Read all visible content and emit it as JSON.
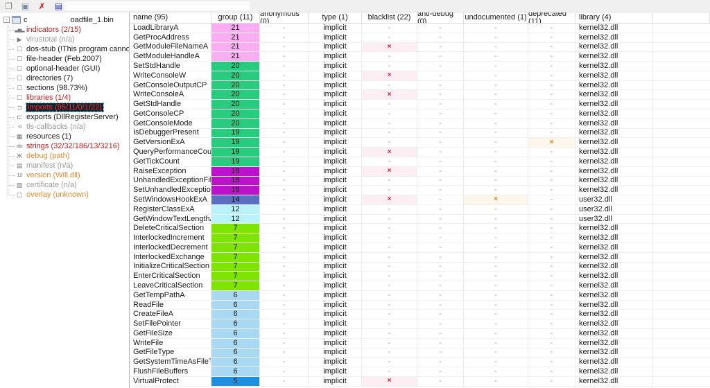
{
  "toolbar": {
    "icons": [
      {
        "name": "open-file-icon",
        "glyph": "❒"
      },
      {
        "name": "save-icon",
        "glyph": "▣"
      },
      {
        "name": "close-file-icon",
        "glyph": "✗"
      },
      {
        "name": "xml-report-icon",
        "glyph": "▤"
      },
      {
        "name": "help-icon",
        "glyph": "?"
      }
    ]
  },
  "sidebar": {
    "root": {
      "prefix": "c",
      "suffix": "oadfile_1.bin",
      "expander": "-"
    },
    "items": [
      {
        "label": "indicators (2/15)",
        "color": "c-red",
        "icon": "indicators-icon",
        "glyph": "▃▅▂",
        "mini": true,
        "selected": false
      },
      {
        "label": "virustotal (n/a)",
        "color": "c-gray",
        "icon": "virustotal-icon",
        "glyph": "▶",
        "mini": false,
        "selected": false
      },
      {
        "label": "dos-stub (!This program cannot be ru",
        "color": "c-black",
        "icon": "checkbox-icon",
        "glyph": "☐",
        "mini": false,
        "selected": false
      },
      {
        "label": "file-header (Feb.2007)",
        "color": "c-black",
        "icon": "checkbox-icon",
        "glyph": "☐",
        "mini": false,
        "selected": false
      },
      {
        "label": "optional-header (GUI)",
        "color": "c-black",
        "icon": "checkbox-icon",
        "glyph": "☐",
        "mini": false,
        "selected": false
      },
      {
        "label": "directories (7)",
        "color": "c-black",
        "icon": "checkbox-icon",
        "glyph": "☐",
        "mini": false,
        "selected": false
      },
      {
        "label": "sections (98.73%)",
        "color": "c-black",
        "icon": "checkbox-icon",
        "glyph": "☐",
        "mini": false,
        "selected": false
      },
      {
        "label": "libraries (1/4)",
        "color": "c-red",
        "icon": "checkbox-icon",
        "glyph": "☐",
        "mini": false,
        "selected": false
      },
      {
        "label": "imports (95/11/0/1/22)",
        "color": "c-red",
        "icon": "imports-icon",
        "glyph": "⊐",
        "mini": false,
        "selected": true
      },
      {
        "label": "exports (DllRegisterServer)",
        "color": "c-black",
        "icon": "exports-icon",
        "glyph": "⊏",
        "mini": false,
        "selected": false
      },
      {
        "label": "tls-callbacks (n/a)",
        "color": "c-gray",
        "icon": "tls-callbacks-icon",
        "glyph": "-o",
        "mini": true,
        "selected": false
      },
      {
        "label": "resources (1)",
        "color": "c-black",
        "icon": "resources-icon",
        "glyph": "▦",
        "mini": false,
        "selected": false
      },
      {
        "label": "strings (32/32/186/13/3216)",
        "color": "c-red",
        "icon": "strings-icon",
        "glyph": "abc",
        "mini": true,
        "selected": false
      },
      {
        "label": "debug (path)",
        "color": "c-orange",
        "icon": "debug-icon",
        "glyph": "Ж",
        "mini": false,
        "selected": false
      },
      {
        "label": "manifest (n/a)",
        "color": "c-gray",
        "icon": "manifest-icon",
        "glyph": "▤",
        "mini": false,
        "selected": false
      },
      {
        "label": "version (Will.dll)",
        "color": "c-orange",
        "icon": "version-icon",
        "glyph": "1.0",
        "mini": true,
        "selected": false
      },
      {
        "label": "certificate (n/a)",
        "color": "c-gray",
        "icon": "certificate-icon",
        "glyph": "▧",
        "mini": false,
        "selected": false
      },
      {
        "label": "overlay (unknown)",
        "color": "c-orange",
        "icon": "overlay-icon",
        "glyph": "▢",
        "mini": false,
        "selected": false
      }
    ]
  },
  "table": {
    "columns": [
      {
        "label": "name (95)",
        "align": "left"
      },
      {
        "label": "group (11)",
        "align": "center"
      },
      {
        "label": "anonymous (0)",
        "align": "center"
      },
      {
        "label": "type (1)",
        "align": "center"
      },
      {
        "label": "blacklist (22)",
        "align": "center"
      },
      {
        "label": "anti-debug (0)",
        "align": "center"
      },
      {
        "label": "undocumented (1)",
        "align": "center"
      },
      {
        "label": "deprecated (11)",
        "align": "center"
      },
      {
        "label": "library (4)",
        "align": "left"
      },
      {
        "label": "",
        "align": "center"
      }
    ],
    "group_colors": {
      "21": "#f9aef2",
      "20": "#29cc7e",
      "19": "#29cc7e",
      "18": "#bc12cc",
      "14": "#5a6ec4",
      "12": "#baf3fc",
      "7": "#7de500",
      "6": "#a9d9f2",
      "5": "#1e8ede"
    },
    "rows": [
      {
        "name": "LoadLibraryA",
        "group": "21",
        "anonymous": "-",
        "type": "implicit",
        "blacklist": "-",
        "anti_debug": "-",
        "undocumented": "-",
        "deprecated": "-",
        "library": "kernel32.dll"
      },
      {
        "name": "GetProcAddress",
        "group": "21",
        "anonymous": "-",
        "type": "implicit",
        "blacklist": "-",
        "anti_debug": "-",
        "undocumented": "-",
        "deprecated": "-",
        "library": "kernel32.dll"
      },
      {
        "name": "GetModuleFileNameA",
        "group": "21",
        "anonymous": "-",
        "type": "implicit",
        "blacklist": "x",
        "anti_debug": "-",
        "undocumented": "-",
        "deprecated": "-",
        "library": "kernel32.dll"
      },
      {
        "name": "GetModuleHandleA",
        "group": "21",
        "anonymous": "-",
        "type": "implicit",
        "blacklist": "-",
        "anti_debug": "-",
        "undocumented": "-",
        "deprecated": "-",
        "library": "kernel32.dll"
      },
      {
        "name": "SetStdHandle",
        "group": "20",
        "anonymous": "-",
        "type": "implicit",
        "blacklist": "-",
        "anti_debug": "-",
        "undocumented": "-",
        "deprecated": "-",
        "library": "kernel32.dll"
      },
      {
        "name": "WriteConsoleW",
        "group": "20",
        "anonymous": "-",
        "type": "implicit",
        "blacklist": "x",
        "anti_debug": "-",
        "undocumented": "-",
        "deprecated": "-",
        "library": "kernel32.dll"
      },
      {
        "name": "GetConsoleOutputCP",
        "group": "20",
        "anonymous": "-",
        "type": "implicit",
        "blacklist": "-",
        "anti_debug": "-",
        "undocumented": "-",
        "deprecated": "-",
        "library": "kernel32.dll"
      },
      {
        "name": "WriteConsoleA",
        "group": "20",
        "anonymous": "-",
        "type": "implicit",
        "blacklist": "x",
        "anti_debug": "-",
        "undocumented": "-",
        "deprecated": "-",
        "library": "kernel32.dll"
      },
      {
        "name": "GetStdHandle",
        "group": "20",
        "anonymous": "-",
        "type": "implicit",
        "blacklist": "-",
        "anti_debug": "-",
        "undocumented": "-",
        "deprecated": "-",
        "library": "kernel32.dll"
      },
      {
        "name": "GetConsoleCP",
        "group": "20",
        "anonymous": "-",
        "type": "implicit",
        "blacklist": "-",
        "anti_debug": "-",
        "undocumented": "-",
        "deprecated": "-",
        "library": "kernel32.dll"
      },
      {
        "name": "GetConsoleMode",
        "group": "20",
        "anonymous": "-",
        "type": "implicit",
        "blacklist": "-",
        "anti_debug": "-",
        "undocumented": "-",
        "deprecated": "-",
        "library": "kernel32.dll"
      },
      {
        "name": "IsDebuggerPresent",
        "group": "19",
        "anonymous": "-",
        "type": "implicit",
        "blacklist": "-",
        "anti_debug": "-",
        "undocumented": "-",
        "deprecated": "-",
        "library": "kernel32.dll"
      },
      {
        "name": "GetVersionExA",
        "group": "19",
        "anonymous": "-",
        "type": "implicit",
        "blacklist": "-",
        "anti_debug": "-",
        "undocumented": "-",
        "deprecated": "x",
        "library": "kernel32.dll"
      },
      {
        "name": "QueryPerformanceCounter",
        "group": "19",
        "anonymous": "-",
        "type": "implicit",
        "blacklist": "x",
        "anti_debug": "-",
        "undocumented": "-",
        "deprecated": "-",
        "library": "kernel32.dll"
      },
      {
        "name": "GetTickCount",
        "group": "19",
        "anonymous": "-",
        "type": "implicit",
        "blacklist": "-",
        "anti_debug": "-",
        "undocumented": "-",
        "deprecated": "-",
        "library": "kernel32.dll"
      },
      {
        "name": "RaiseException",
        "group": "18",
        "anonymous": "-",
        "type": "implicit",
        "blacklist": "x",
        "anti_debug": "-",
        "undocumented": "-",
        "deprecated": "-",
        "library": "kernel32.dll"
      },
      {
        "name": "UnhandledExceptionFilter",
        "group": "18",
        "anonymous": "-",
        "type": "implicit",
        "blacklist": "-",
        "anti_debug": "-",
        "undocumented": "-",
        "deprecated": "-",
        "library": "kernel32.dll"
      },
      {
        "name": "SetUnhandledExceptionFilter",
        "group": "18",
        "anonymous": "-",
        "type": "implicit",
        "blacklist": "-",
        "anti_debug": "-",
        "undocumented": "-",
        "deprecated": "-",
        "library": "kernel32.dll"
      },
      {
        "name": "SetWindowsHookExA",
        "group": "14",
        "anonymous": "-",
        "type": "implicit",
        "blacklist": "x",
        "anti_debug": "-",
        "undocumented": "x",
        "deprecated": "-",
        "library": "user32.dll"
      },
      {
        "name": "RegisterClassExA",
        "group": "12",
        "anonymous": "-",
        "type": "implicit",
        "blacklist": "-",
        "anti_debug": "-",
        "undocumented": "-",
        "deprecated": "-",
        "library": "user32.dll"
      },
      {
        "name": "GetWindowTextLengthA",
        "group": "12",
        "anonymous": "-",
        "type": "implicit",
        "blacklist": "-",
        "anti_debug": "-",
        "undocumented": "-",
        "deprecated": "-",
        "library": "user32.dll"
      },
      {
        "name": "DeleteCriticalSection",
        "group": "7",
        "anonymous": "-",
        "type": "implicit",
        "blacklist": "-",
        "anti_debug": "-",
        "undocumented": "-",
        "deprecated": "-",
        "library": "kernel32.dll"
      },
      {
        "name": "InterlockedIncrement",
        "group": "7",
        "anonymous": "-",
        "type": "implicit",
        "blacklist": "-",
        "anti_debug": "-",
        "undocumented": "-",
        "deprecated": "-",
        "library": "kernel32.dll"
      },
      {
        "name": "InterlockedDecrement",
        "group": "7",
        "anonymous": "-",
        "type": "implicit",
        "blacklist": "-",
        "anti_debug": "-",
        "undocumented": "-",
        "deprecated": "-",
        "library": "kernel32.dll"
      },
      {
        "name": "InterlockedExchange",
        "group": "7",
        "anonymous": "-",
        "type": "implicit",
        "blacklist": "-",
        "anti_debug": "-",
        "undocumented": "-",
        "deprecated": "-",
        "library": "kernel32.dll"
      },
      {
        "name": "InitializeCriticalSection",
        "group": "7",
        "anonymous": "-",
        "type": "implicit",
        "blacklist": "-",
        "anti_debug": "-",
        "undocumented": "-",
        "deprecated": "-",
        "library": "kernel32.dll"
      },
      {
        "name": "EnterCriticalSection",
        "group": "7",
        "anonymous": "-",
        "type": "implicit",
        "blacklist": "-",
        "anti_debug": "-",
        "undocumented": "-",
        "deprecated": "-",
        "library": "kernel32.dll"
      },
      {
        "name": "LeaveCriticalSection",
        "group": "7",
        "anonymous": "-",
        "type": "implicit",
        "blacklist": "-",
        "anti_debug": "-",
        "undocumented": "-",
        "deprecated": "-",
        "library": "kernel32.dll"
      },
      {
        "name": "GetTempPathA",
        "group": "6",
        "anonymous": "-",
        "type": "implicit",
        "blacklist": "-",
        "anti_debug": "-",
        "undocumented": "-",
        "deprecated": "-",
        "library": "kernel32.dll"
      },
      {
        "name": "ReadFile",
        "group": "6",
        "anonymous": "-",
        "type": "implicit",
        "blacklist": "-",
        "anti_debug": "-",
        "undocumented": "-",
        "deprecated": "-",
        "library": "kernel32.dll"
      },
      {
        "name": "CreateFileA",
        "group": "6",
        "anonymous": "-",
        "type": "implicit",
        "blacklist": "-",
        "anti_debug": "-",
        "undocumented": "-",
        "deprecated": "-",
        "library": "kernel32.dll"
      },
      {
        "name": "SetFilePointer",
        "group": "6",
        "anonymous": "-",
        "type": "implicit",
        "blacklist": "-",
        "anti_debug": "-",
        "undocumented": "-",
        "deprecated": "-",
        "library": "kernel32.dll"
      },
      {
        "name": "GetFileSize",
        "group": "6",
        "anonymous": "-",
        "type": "implicit",
        "blacklist": "-",
        "anti_debug": "-",
        "undocumented": "-",
        "deprecated": "-",
        "library": "kernel32.dll"
      },
      {
        "name": "WriteFile",
        "group": "6",
        "anonymous": "-",
        "type": "implicit",
        "blacklist": "-",
        "anti_debug": "-",
        "undocumented": "-",
        "deprecated": "-",
        "library": "kernel32.dll"
      },
      {
        "name": "GetFileType",
        "group": "6",
        "anonymous": "-",
        "type": "implicit",
        "blacklist": "-",
        "anti_debug": "-",
        "undocumented": "-",
        "deprecated": "-",
        "library": "kernel32.dll"
      },
      {
        "name": "GetSystemTimeAsFileTime",
        "group": "6",
        "anonymous": "-",
        "type": "implicit",
        "blacklist": "-",
        "anti_debug": "-",
        "undocumented": "-",
        "deprecated": "-",
        "library": "kernel32.dll"
      },
      {
        "name": "FlushFileBuffers",
        "group": "6",
        "anonymous": "-",
        "type": "implicit",
        "blacklist": "-",
        "anti_debug": "-",
        "undocumented": "-",
        "deprecated": "-",
        "library": "kernel32.dll"
      },
      {
        "name": "VirtualProtect",
        "group": "5",
        "anonymous": "-",
        "type": "implicit",
        "blacklist": "x",
        "anti_debug": "-",
        "undocumented": "-",
        "deprecated": "-",
        "library": "kernel32.dll"
      }
    ]
  }
}
